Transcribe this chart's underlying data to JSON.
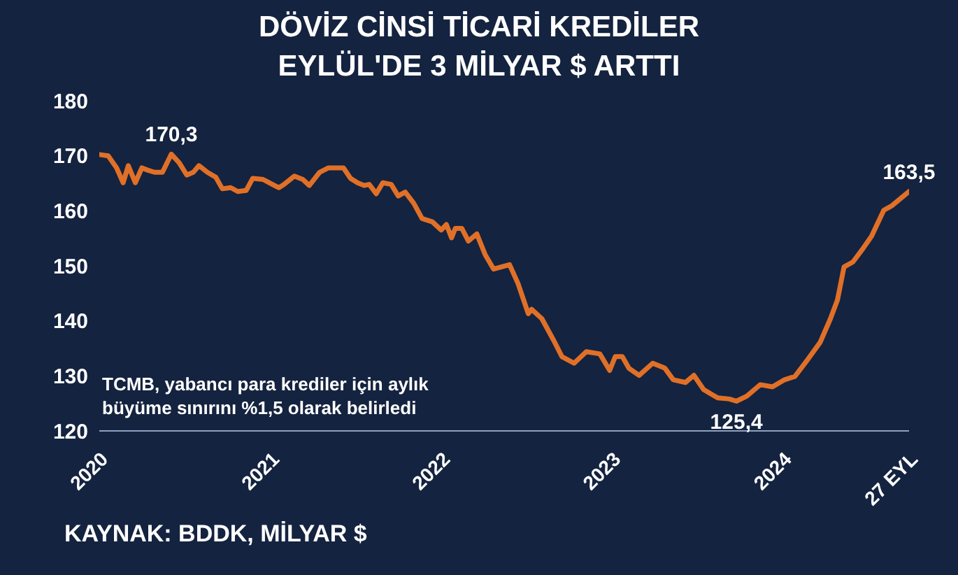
{
  "chart_data": {
    "type": "line",
    "title": "DÖVİZ CİNSİ TİCARİ KREDİLER\nEYLÜL'DE 3 MİLYAR $ ARTTI",
    "x": [
      "2020-01-03",
      "2020-01-20",
      "2020-02-07",
      "2020-02-21",
      "2020-03-03",
      "2020-03-18",
      "2020-04-01",
      "2020-04-13",
      "2020-04-28",
      "2020-05-15",
      "2020-06-03",
      "2020-06-20",
      "2020-07-06",
      "2020-07-20",
      "2020-08-01",
      "2020-08-19",
      "2020-09-06",
      "2020-09-20",
      "2020-10-08",
      "2020-10-23",
      "2020-11-10",
      "2020-11-24",
      "2020-12-16",
      "2021-01-05",
      "2021-01-19",
      "2021-01-30",
      "2021-02-21",
      "2021-03-11",
      "2021-03-25",
      "2021-04-16",
      "2021-05-05",
      "2021-05-19",
      "2021-06-06",
      "2021-06-21",
      "2021-07-06",
      "2021-07-20",
      "2021-07-31",
      "2021-08-15",
      "2021-08-29",
      "2021-09-16",
      "2021-10-01",
      "2021-10-16",
      "2021-11-03",
      "2021-11-21",
      "2021-12-13",
      "2022-01-01",
      "2022-01-12",
      "2022-01-23",
      "2022-01-31",
      "2022-02-14",
      "2022-02-28",
      "2022-03-18",
      "2022-04-05",
      "2022-04-23",
      "2022-05-27",
      "2022-06-14",
      "2022-07-06",
      "2022-07-13",
      "2022-08-04",
      "2022-08-29",
      "2022-09-16",
      "2022-10-12",
      "2022-10-27",
      "2022-11-07",
      "2022-12-06",
      "2022-12-27",
      "2023-01-08",
      "2023-01-23",
      "2023-02-06",
      "2023-02-28",
      "2023-03-29",
      "2023-04-24",
      "2023-05-12",
      "2023-06-07",
      "2023-06-25",
      "2023-07-16",
      "2023-08-15",
      "2023-09-09",
      "2023-09-24",
      "2023-10-16",
      "2023-11-14",
      "2023-12-10",
      "2024-01-05",
      "2024-01-27",
      "2024-02-21",
      "2024-03-21",
      "2024-04-12",
      "2024-04-27",
      "2024-05-11",
      "2024-05-30",
      "2024-06-21",
      "2024-07-09",
      "2024-08-04",
      "2024-08-21",
      "2024-09-27"
    ],
    "series": [
      {
        "color": "#e07028",
        "values": [
          170.2,
          170.0,
          167.8,
          165.1,
          168.2,
          165.1,
          167.8,
          167.4,
          167.0,
          167.0,
          170.3,
          168.7,
          166.5,
          167.0,
          168.2,
          167.0,
          166.1,
          164.0,
          164.2,
          163.5,
          163.7,
          165.9,
          165.7,
          164.8,
          164.2,
          164.8,
          166.3,
          165.7,
          164.6,
          167.0,
          167.8,
          167.8,
          167.8,
          165.9,
          165.1,
          164.6,
          164.8,
          163.1,
          165.1,
          164.8,
          162.7,
          163.4,
          161.4,
          158.6,
          158.0,
          156.5,
          157.5,
          155.1,
          156.8,
          156.8,
          154.5,
          155.8,
          152.0,
          149.4,
          150.2,
          146.8,
          141.3,
          142.1,
          140.4,
          136.5,
          133.5,
          132.3,
          133.5,
          134.4,
          134.0,
          131.0,
          133.5,
          133.5,
          131.4,
          130.1,
          132.3,
          131.4,
          129.3,
          128.8,
          130.1,
          127.5,
          126.0,
          125.8,
          125.4,
          126.3,
          128.4,
          128.0,
          129.3,
          129.9,
          132.7,
          136.1,
          140.4,
          143.8,
          149.8,
          150.7,
          153.2,
          155.4,
          160.1,
          160.9,
          163.5
        ]
      }
    ],
    "xlim": [
      "2020-01-01",
      "2024-09-27"
    ],
    "xticks": [
      {
        "value": "2020-01-01",
        "label": "2020"
      },
      {
        "value": "2021-01-01",
        "label": "2021"
      },
      {
        "value": "2022-01-01",
        "label": "2022"
      },
      {
        "value": "2023-01-01",
        "label": "2023"
      },
      {
        "value": "2024-01-01",
        "label": "2024"
      },
      {
        "value": "2024-09-27",
        "label": "27 EYL"
      }
    ],
    "ylim": [
      120,
      180
    ],
    "yticks": [
      120,
      130,
      140,
      150,
      160,
      170,
      180
    ],
    "grid": false,
    "legend": false,
    "marker": "none",
    "line_style": "solid",
    "annotations": [
      {
        "text": "170,3",
        "x": "2020-06-03",
        "y": 170.3
      },
      {
        "text": "125,4",
        "x": "2023-09-24",
        "y": 125.4
      },
      {
        "text": "163,5",
        "x": "2024-09-27",
        "y": 163.5
      },
      "TCMB, yabancı para krediler için aylık büyüme sınırını %1,5 olarak belirledi",
      "KAYNAK: BDDK, MİLYAR $"
    ]
  }
}
